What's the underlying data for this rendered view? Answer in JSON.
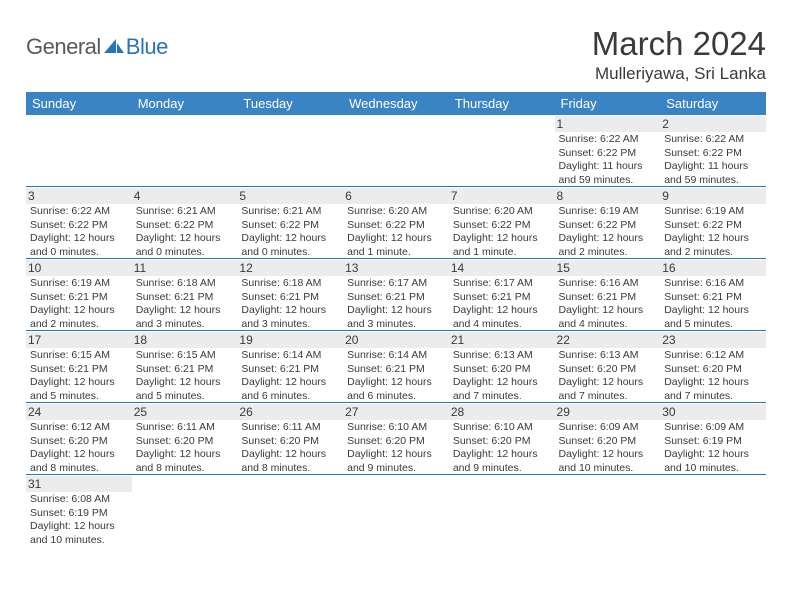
{
  "logo": {
    "text1": "General",
    "text2": "Blue"
  },
  "title": "March 2024",
  "location": "Mulleriyawa, Sri Lanka",
  "colors": {
    "header_bg": "#3b84c4",
    "header_text": "#ffffff",
    "rule": "#2b73b8",
    "daynum_bg": "#ececec",
    "text": "#3a3a3a",
    "logo_gray": "#5a5a5a",
    "logo_blue": "#2b73b8"
  },
  "weekdays": [
    "Sunday",
    "Monday",
    "Tuesday",
    "Wednesday",
    "Thursday",
    "Friday",
    "Saturday"
  ],
  "weeks": [
    [
      {
        "empty": true
      },
      {
        "empty": true
      },
      {
        "empty": true
      },
      {
        "empty": true
      },
      {
        "empty": true
      },
      {
        "day": "1",
        "sunrise": "Sunrise: 6:22 AM",
        "sunset": "Sunset: 6:22 PM",
        "daylight": "Daylight: 11 hours and 59 minutes."
      },
      {
        "day": "2",
        "sunrise": "Sunrise: 6:22 AM",
        "sunset": "Sunset: 6:22 PM",
        "daylight": "Daylight: 11 hours and 59 minutes."
      }
    ],
    [
      {
        "day": "3",
        "sunrise": "Sunrise: 6:22 AM",
        "sunset": "Sunset: 6:22 PM",
        "daylight": "Daylight: 12 hours and 0 minutes."
      },
      {
        "day": "4",
        "sunrise": "Sunrise: 6:21 AM",
        "sunset": "Sunset: 6:22 PM",
        "daylight": "Daylight: 12 hours and 0 minutes."
      },
      {
        "day": "5",
        "sunrise": "Sunrise: 6:21 AM",
        "sunset": "Sunset: 6:22 PM",
        "daylight": "Daylight: 12 hours and 0 minutes."
      },
      {
        "day": "6",
        "sunrise": "Sunrise: 6:20 AM",
        "sunset": "Sunset: 6:22 PM",
        "daylight": "Daylight: 12 hours and 1 minute."
      },
      {
        "day": "7",
        "sunrise": "Sunrise: 6:20 AM",
        "sunset": "Sunset: 6:22 PM",
        "daylight": "Daylight: 12 hours and 1 minute."
      },
      {
        "day": "8",
        "sunrise": "Sunrise: 6:19 AM",
        "sunset": "Sunset: 6:22 PM",
        "daylight": "Daylight: 12 hours and 2 minutes."
      },
      {
        "day": "9",
        "sunrise": "Sunrise: 6:19 AM",
        "sunset": "Sunset: 6:22 PM",
        "daylight": "Daylight: 12 hours and 2 minutes."
      }
    ],
    [
      {
        "day": "10",
        "sunrise": "Sunrise: 6:19 AM",
        "sunset": "Sunset: 6:21 PM",
        "daylight": "Daylight: 12 hours and 2 minutes."
      },
      {
        "day": "11",
        "sunrise": "Sunrise: 6:18 AM",
        "sunset": "Sunset: 6:21 PM",
        "daylight": "Daylight: 12 hours and 3 minutes."
      },
      {
        "day": "12",
        "sunrise": "Sunrise: 6:18 AM",
        "sunset": "Sunset: 6:21 PM",
        "daylight": "Daylight: 12 hours and 3 minutes."
      },
      {
        "day": "13",
        "sunrise": "Sunrise: 6:17 AM",
        "sunset": "Sunset: 6:21 PM",
        "daylight": "Daylight: 12 hours and 3 minutes."
      },
      {
        "day": "14",
        "sunrise": "Sunrise: 6:17 AM",
        "sunset": "Sunset: 6:21 PM",
        "daylight": "Daylight: 12 hours and 4 minutes."
      },
      {
        "day": "15",
        "sunrise": "Sunrise: 6:16 AM",
        "sunset": "Sunset: 6:21 PM",
        "daylight": "Daylight: 12 hours and 4 minutes."
      },
      {
        "day": "16",
        "sunrise": "Sunrise: 6:16 AM",
        "sunset": "Sunset: 6:21 PM",
        "daylight": "Daylight: 12 hours and 5 minutes."
      }
    ],
    [
      {
        "day": "17",
        "sunrise": "Sunrise: 6:15 AM",
        "sunset": "Sunset: 6:21 PM",
        "daylight": "Daylight: 12 hours and 5 minutes."
      },
      {
        "day": "18",
        "sunrise": "Sunrise: 6:15 AM",
        "sunset": "Sunset: 6:21 PM",
        "daylight": "Daylight: 12 hours and 5 minutes."
      },
      {
        "day": "19",
        "sunrise": "Sunrise: 6:14 AM",
        "sunset": "Sunset: 6:21 PM",
        "daylight": "Daylight: 12 hours and 6 minutes."
      },
      {
        "day": "20",
        "sunrise": "Sunrise: 6:14 AM",
        "sunset": "Sunset: 6:21 PM",
        "daylight": "Daylight: 12 hours and 6 minutes."
      },
      {
        "day": "21",
        "sunrise": "Sunrise: 6:13 AM",
        "sunset": "Sunset: 6:20 PM",
        "daylight": "Daylight: 12 hours and 7 minutes."
      },
      {
        "day": "22",
        "sunrise": "Sunrise: 6:13 AM",
        "sunset": "Sunset: 6:20 PM",
        "daylight": "Daylight: 12 hours and 7 minutes."
      },
      {
        "day": "23",
        "sunrise": "Sunrise: 6:12 AM",
        "sunset": "Sunset: 6:20 PM",
        "daylight": "Daylight: 12 hours and 7 minutes."
      }
    ],
    [
      {
        "day": "24",
        "sunrise": "Sunrise: 6:12 AM",
        "sunset": "Sunset: 6:20 PM",
        "daylight": "Daylight: 12 hours and 8 minutes."
      },
      {
        "day": "25",
        "sunrise": "Sunrise: 6:11 AM",
        "sunset": "Sunset: 6:20 PM",
        "daylight": "Daylight: 12 hours and 8 minutes."
      },
      {
        "day": "26",
        "sunrise": "Sunrise: 6:11 AM",
        "sunset": "Sunset: 6:20 PM",
        "daylight": "Daylight: 12 hours and 8 minutes."
      },
      {
        "day": "27",
        "sunrise": "Sunrise: 6:10 AM",
        "sunset": "Sunset: 6:20 PM",
        "daylight": "Daylight: 12 hours and 9 minutes."
      },
      {
        "day": "28",
        "sunrise": "Sunrise: 6:10 AM",
        "sunset": "Sunset: 6:20 PM",
        "daylight": "Daylight: 12 hours and 9 minutes."
      },
      {
        "day": "29",
        "sunrise": "Sunrise: 6:09 AM",
        "sunset": "Sunset: 6:20 PM",
        "daylight": "Daylight: 12 hours and 10 minutes."
      },
      {
        "day": "30",
        "sunrise": "Sunrise: 6:09 AM",
        "sunset": "Sunset: 6:19 PM",
        "daylight": "Daylight: 12 hours and 10 minutes."
      }
    ],
    [
      {
        "day": "31",
        "sunrise": "Sunrise: 6:08 AM",
        "sunset": "Sunset: 6:19 PM",
        "daylight": "Daylight: 12 hours and 10 minutes."
      },
      {
        "empty": true
      },
      {
        "empty": true
      },
      {
        "empty": true
      },
      {
        "empty": true
      },
      {
        "empty": true
      },
      {
        "empty": true
      }
    ]
  ]
}
